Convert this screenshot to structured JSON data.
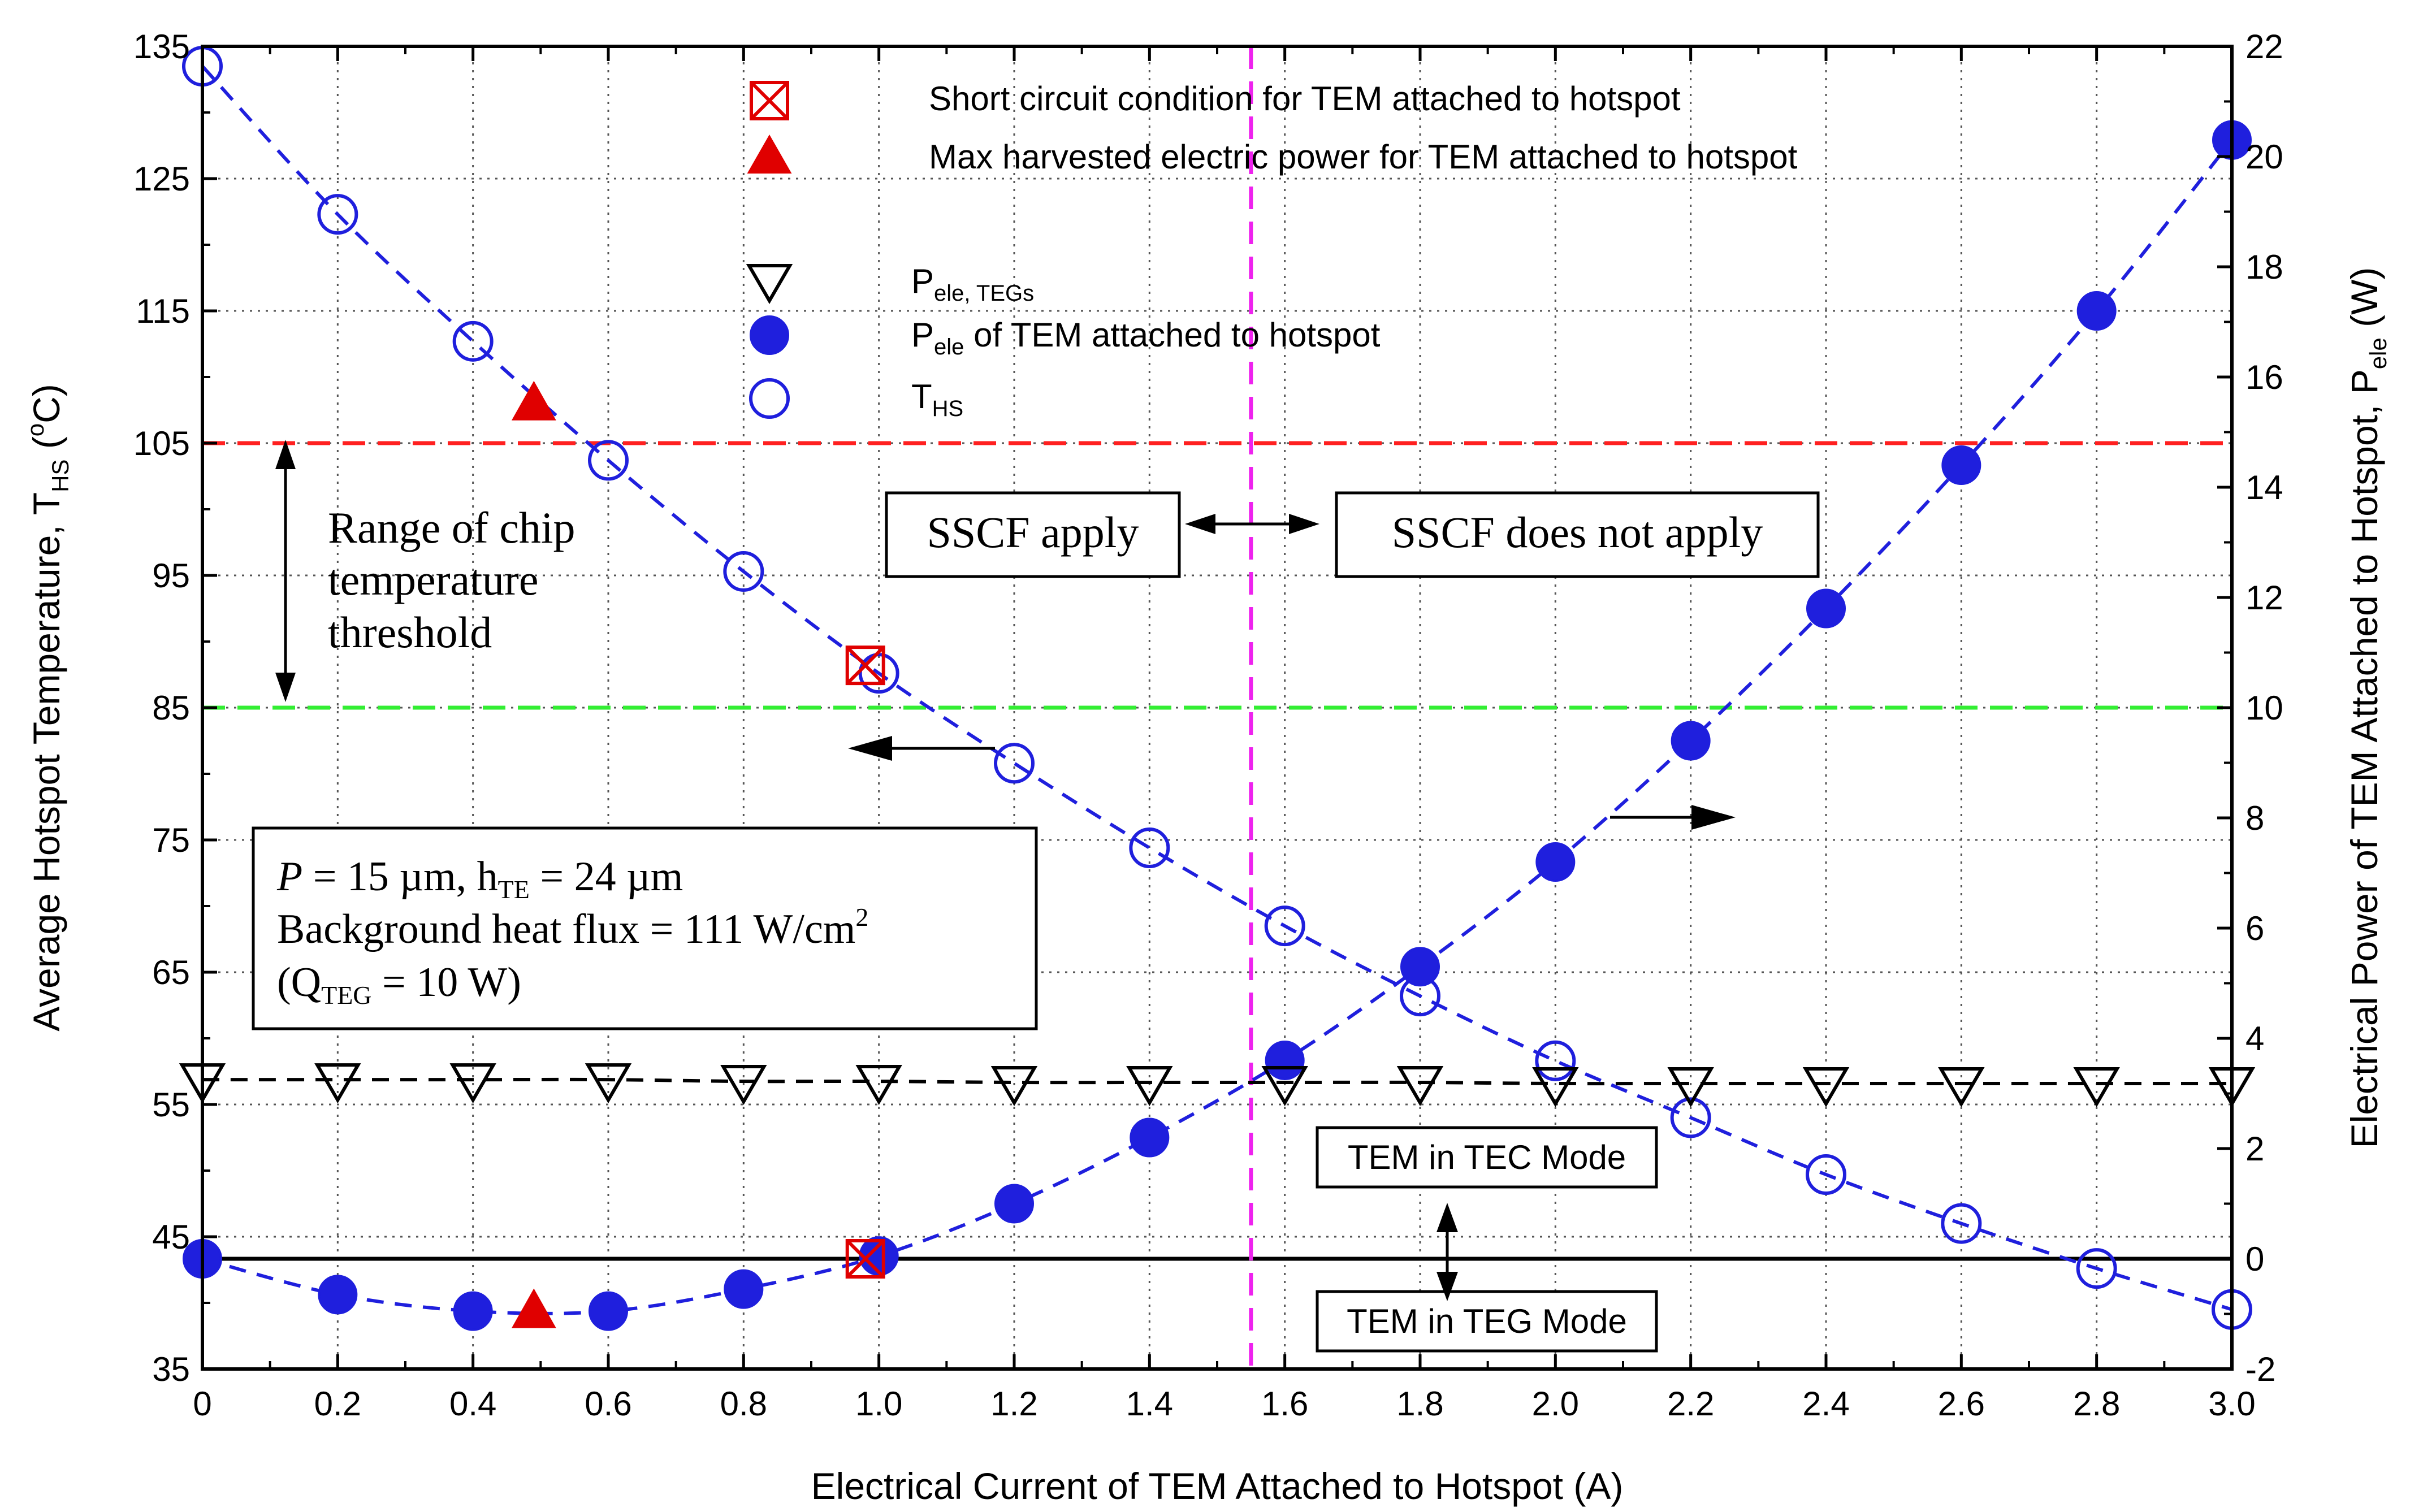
{
  "chart_data": {
    "type": "scatter",
    "xlabel": "Electrical Current of TEM Attached to Hotspot (A)",
    "ylabel_left": {
      "main": "Average Hotspot Temperature, T",
      "sub": "HS",
      "tail": " (",
      "sup": "o",
      "unit": "C)"
    },
    "ylabel_right": {
      "main": "Electrical Power of TEM Attached to Hotspot, P",
      "sub": "ele",
      "tail": " (W)"
    },
    "xlim": [
      0,
      3.0
    ],
    "ylim_left": [
      35,
      135
    ],
    "ylim_right": [
      -2,
      22
    ],
    "grid": true,
    "x_ticks": [
      "0",
      "0.2",
      "0.4",
      "0.6",
      "0.8",
      "1.0",
      "1.2",
      "1.4",
      "1.6",
      "1.8",
      "2.0",
      "2.2",
      "2.4",
      "2.6",
      "2.8",
      "3.0"
    ],
    "x_tick_values": [
      0,
      0.2,
      0.4,
      0.6,
      0.8,
      1.0,
      1.2,
      1.4,
      1.6,
      1.8,
      2.0,
      2.2,
      2.4,
      2.6,
      2.8,
      3.0
    ],
    "y_left_ticks": [
      "35",
      "45",
      "55",
      "65",
      "75",
      "85",
      "95",
      "105",
      "115",
      "125",
      "135"
    ],
    "y_left_tick_values": [
      35,
      45,
      55,
      65,
      75,
      85,
      95,
      105,
      115,
      125,
      135
    ],
    "y_right_ticks": [
      "-2",
      "0",
      "2",
      "4",
      "6",
      "8",
      "10",
      "12",
      "14",
      "16",
      "18",
      "20",
      "22"
    ],
    "y_right_tick_values": [
      -2,
      0,
      2,
      4,
      6,
      8,
      10,
      12,
      14,
      16,
      18,
      20,
      22
    ],
    "series": [
      {
        "name": "T_HS",
        "axis": "left",
        "marker": "open-circle",
        "color": "#1f1fdd",
        "x": [
          0,
          0.2,
          0.4,
          0.6,
          0.8,
          1.0,
          1.2,
          1.4,
          1.6,
          1.8,
          2.0,
          2.2,
          2.4,
          2.6,
          2.8,
          3.0
        ],
        "y": [
          133.5,
          122.3,
          112.7,
          103.7,
          95.3,
          87.6,
          80.8,
          74.4,
          68.5,
          63.2,
          58.3,
          54.0,
          49.7,
          46.0,
          42.6,
          39.5
        ]
      },
      {
        "name": "P_ele of TEM attached to hotspot",
        "axis": "right",
        "marker": "filled-circle",
        "color": "#1f1fdd",
        "x": [
          0,
          0.2,
          0.4,
          0.6,
          0.8,
          1.0,
          1.2,
          1.4,
          1.6,
          1.8,
          2.0,
          2.2,
          2.4,
          2.6,
          2.8,
          3.0
        ],
        "y": [
          0.0,
          -0.65,
          -0.95,
          -0.95,
          -0.55,
          0.05,
          1.0,
          2.2,
          3.6,
          5.3,
          7.2,
          9.4,
          11.8,
          14.4,
          17.2,
          20.3
        ]
      },
      {
        "name": "P_ele, TEGs",
        "axis": "right",
        "marker": "open-triangle-down",
        "color": "#000000",
        "x": [
          0,
          0.2,
          0.4,
          0.6,
          0.8,
          1.0,
          1.2,
          1.4,
          1.6,
          1.8,
          2.0,
          2.2,
          2.4,
          2.6,
          2.8,
          3.0
        ],
        "y": [
          3.25,
          3.25,
          3.25,
          3.25,
          3.22,
          3.22,
          3.2,
          3.2,
          3.2,
          3.2,
          3.18,
          3.18,
          3.18,
          3.18,
          3.18,
          3.18
        ]
      },
      {
        "name": "Short circuit condition for TEM attached to hotspot",
        "axis": "left",
        "marker": "boxed-x",
        "color": "#e00000",
        "x": [
          0.98
        ],
        "y": [
          88.2
        ]
      },
      {
        "name": "Short circuit condition (power)",
        "axis": "right",
        "marker": "boxed-x",
        "color": "#e00000",
        "x": [
          0.98
        ],
        "y": [
          0.0
        ]
      },
      {
        "name": "Max harvested electric power for TEM attached to hotspot",
        "axis": "left",
        "marker": "filled-triangle",
        "color": "#e00000",
        "x": [
          0.49
        ],
        "y": [
          108.0
        ]
      },
      {
        "name": "Max harvested electric power (power)",
        "axis": "right",
        "marker": "filled-triangle",
        "color": "#e00000",
        "x": [
          0.49
        ],
        "y": [
          -0.95
        ]
      }
    ],
    "reference_lines": [
      {
        "name": "upper-threshold-line",
        "orientation": "horizontal",
        "axis": "left",
        "value": 105,
        "color": "#ff2020",
        "style": "dashed"
      },
      {
        "name": "lower-threshold-line",
        "orientation": "horizontal",
        "axis": "left",
        "value": 85,
        "color": "#33ee33",
        "style": "dashed"
      },
      {
        "name": "zero-power-line",
        "orientation": "horizontal",
        "axis": "right",
        "value": 0,
        "color": "#000000",
        "style": "solid"
      },
      {
        "name": "sscf-boundary-line",
        "orientation": "vertical",
        "value": 1.55,
        "color": "#ee22ee",
        "style": "dashed"
      }
    ],
    "legend": [
      {
        "label": "Short circuit condition for TEM attached to hotspot",
        "marker": "boxed-x",
        "color": "#e00000"
      },
      {
        "label": "Max harvested electric power for TEM attached to hotspot",
        "marker": "filled-triangle",
        "color": "#e00000"
      },
      {
        "label": "P",
        "sub": "ele, TEGs",
        "rest": "",
        "marker": "open-triangle-down",
        "color": "#000000"
      },
      {
        "label": "P",
        "sub": "ele",
        "rest": " of TEM attached to hotspot",
        "marker": "filled-circle",
        "color": "#1f1fdd"
      },
      {
        "label": "T",
        "sub": "HS",
        "rest": "",
        "marker": "open-circle",
        "color": "#1f1fdd"
      }
    ],
    "annotations": {
      "threshold_range": [
        "Range of chip",
        "temperature",
        "threshold"
      ],
      "sscf_apply": "SSCF apply",
      "sscf_not_apply": "SSCF does not apply",
      "tec_mode": "TEM in TEC Mode",
      "teg_mode": "TEM in TEG Mode",
      "params": {
        "p_label": "P",
        "p_value": " = 15 µm, h",
        "h_sub": "TE",
        "h_value": " = 24 µm",
        "heat_flux": "Background heat flux = 111 W/cm",
        "heat_flux_sup": "2",
        "q_open": "(Q",
        "q_sub": "TEG",
        "q_value": " = 10 W)"
      }
    }
  },
  "colors": {
    "blue": "#1f1fdd",
    "red": "#e00000",
    "magenta": "#ee22ee",
    "green": "#33ee33",
    "black": "#000000"
  }
}
